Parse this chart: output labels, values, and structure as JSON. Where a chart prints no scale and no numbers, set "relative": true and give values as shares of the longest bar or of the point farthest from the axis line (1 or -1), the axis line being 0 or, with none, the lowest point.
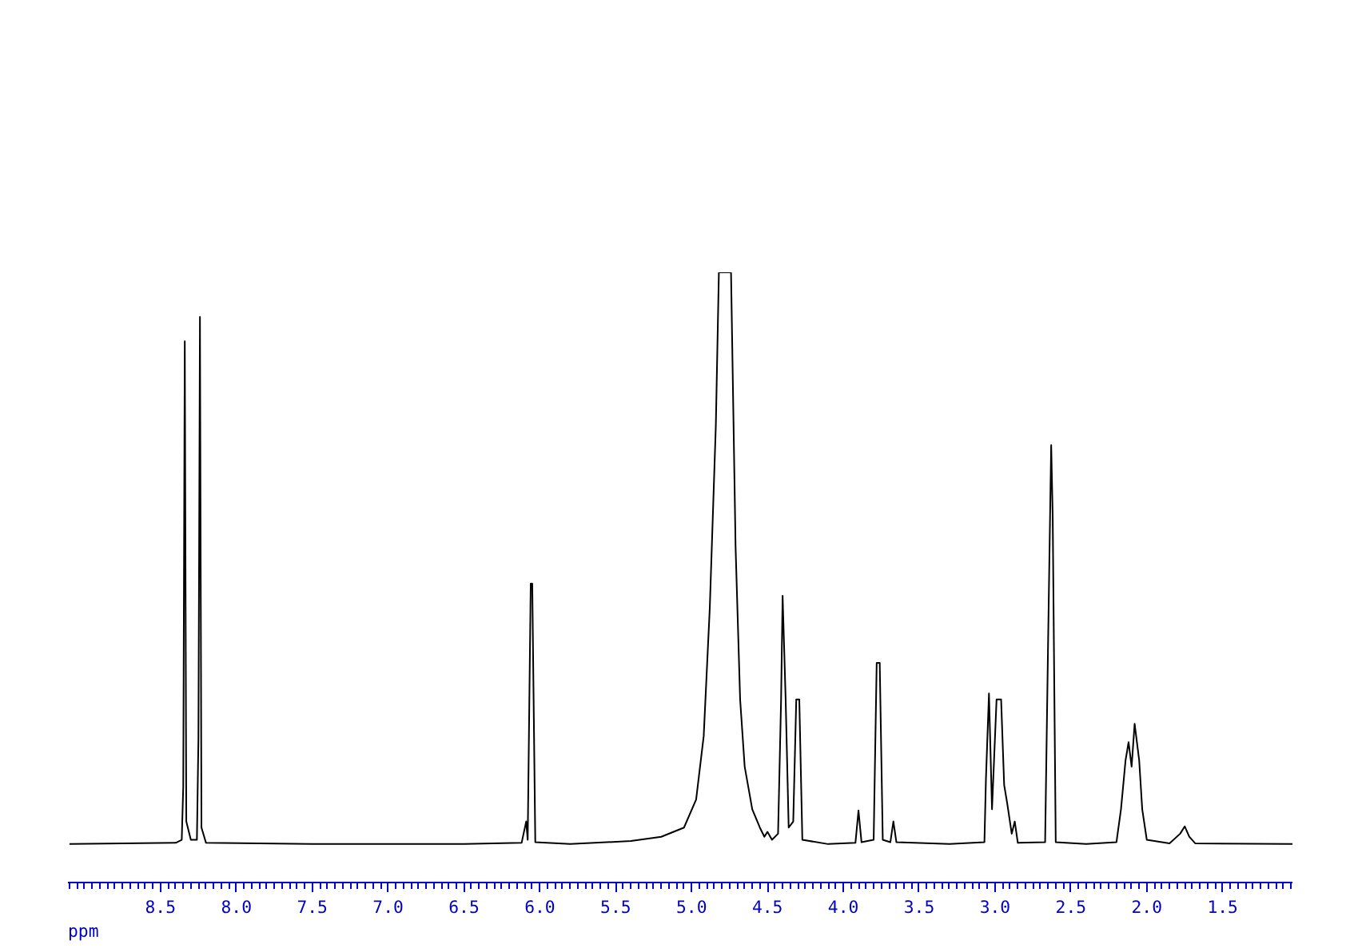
{
  "chart_data": {
    "type": "line",
    "relative": true,
    "xlabel": "ppm",
    "xlim": [
      9.11,
      1.04
    ],
    "xticks": [
      {
        "value": 8.5,
        "label": "8.5"
      },
      {
        "value": 8.0,
        "label": "8.0"
      },
      {
        "value": 7.5,
        "label": "7.5"
      },
      {
        "value": 7.0,
        "label": "7.0"
      },
      {
        "value": 6.5,
        "label": "6.5"
      },
      {
        "value": 6.0,
        "label": "6.0"
      },
      {
        "value": 5.5,
        "label": "5.5"
      },
      {
        "value": 5.0,
        "label": "5.0"
      },
      {
        "value": 4.5,
        "label": "4.5"
      },
      {
        "value": 4.0,
        "label": "4.0"
      },
      {
        "value": 3.5,
        "label": "3.5"
      },
      {
        "value": 3.0,
        "label": "3.0"
      },
      {
        "value": 2.5,
        "label": "2.5"
      },
      {
        "value": 2.0,
        "label": "2.0"
      },
      {
        "value": 1.5,
        "label": "1.5"
      }
    ],
    "grid": false,
    "series": [
      {
        "color": "#000000",
        "x": [
          9.1,
          8.4,
          8.36,
          8.35,
          8.34,
          8.33,
          8.3,
          8.26,
          8.25,
          8.24,
          8.23,
          8.2,
          7.5,
          6.5,
          6.12,
          6.09,
          6.08,
          6.06,
          6.05,
          6.03,
          5.8,
          5.4,
          5.2,
          5.05,
          4.97,
          4.92,
          4.88,
          4.84,
          4.82,
          4.81,
          4.74,
          4.71,
          4.68,
          4.65,
          4.6,
          4.55,
          4.52,
          4.5,
          4.47,
          4.43,
          4.41,
          4.4,
          4.38,
          4.36,
          4.33,
          4.31,
          4.29,
          4.27,
          4.1,
          3.92,
          3.9,
          3.88,
          3.8,
          3.78,
          3.76,
          3.74,
          3.69,
          3.67,
          3.65,
          3.3,
          3.07,
          3.06,
          3.04,
          3.02,
          2.99,
          2.96,
          2.94,
          2.92,
          2.89,
          2.87,
          2.85,
          2.67,
          2.65,
          2.63,
          2.62,
          2.6,
          2.4,
          2.2,
          2.17,
          2.14,
          2.12,
          2.1,
          2.08,
          2.05,
          2.03,
          2.0,
          1.85,
          1.78,
          1.75,
          1.72,
          1.68,
          1.04
        ],
        "values": [
          0.063,
          0.065,
          0.07,
          0.157,
          0.887,
          0.1,
          0.07,
          0.07,
          0.236,
          0.927,
          0.09,
          0.065,
          0.063,
          0.063,
          0.065,
          0.1,
          0.07,
          0.49,
          0.49,
          0.066,
          0.063,
          0.068,
          0.075,
          0.09,
          0.136,
          0.24,
          0.45,
          0.75,
          1.0,
          1.0,
          1.0,
          0.55,
          0.3,
          0.19,
          0.12,
          0.09,
          0.075,
          0.083,
          0.07,
          0.08,
          0.3,
          0.47,
          0.3,
          0.09,
          0.1,
          0.3,
          0.3,
          0.07,
          0.063,
          0.065,
          0.118,
          0.066,
          0.07,
          0.36,
          0.36,
          0.07,
          0.066,
          0.1,
          0.066,
          0.063,
          0.066,
          0.17,
          0.31,
          0.12,
          0.3,
          0.3,
          0.16,
          0.13,
          0.08,
          0.1,
          0.065,
          0.066,
          0.4,
          0.717,
          0.6,
          0.066,
          0.063,
          0.066,
          0.12,
          0.2,
          0.23,
          0.19,
          0.26,
          0.2,
          0.12,
          0.07,
          0.064,
          0.08,
          0.092,
          0.075,
          0.064,
          0.063
        ]
      }
    ]
  }
}
